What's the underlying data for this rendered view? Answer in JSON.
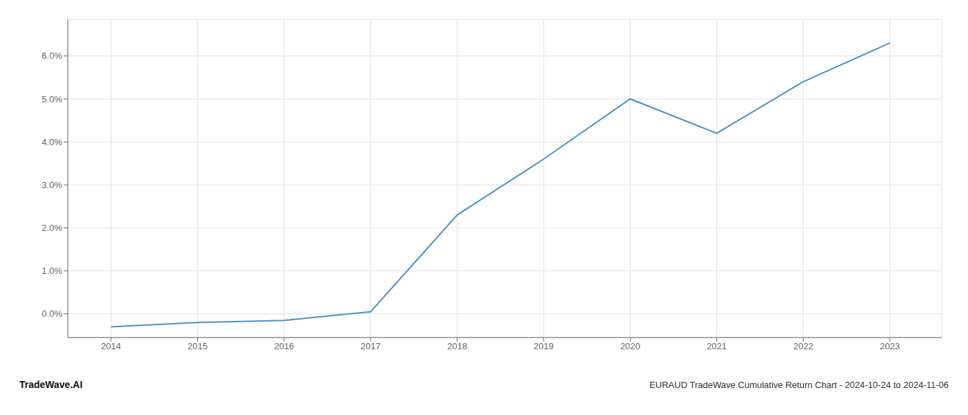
{
  "chart_data": {
    "type": "line",
    "title": "EURAUD TradeWave Cumulative Return Chart - 2024-10-24 to 2024-11-06",
    "annotations": [
      {
        "text": "TradeWave.AI"
      }
    ],
    "x": [
      2014,
      2015,
      2016,
      2017,
      2018,
      2019,
      2020,
      2021,
      2022,
      2023
    ],
    "values": [
      -0.3,
      -0.2,
      -0.15,
      0.05,
      2.3,
      3.6,
      5.0,
      4.2,
      5.4,
      6.3
    ],
    "color": "#4a90c4",
    "xlim": [
      2013.5,
      2023.6
    ],
    "xticks": [
      2014,
      2015,
      2016,
      2017,
      2018,
      2019,
      2020,
      2021,
      2022,
      2023
    ],
    "ylim": [
      -0.55,
      6.85
    ],
    "yticks": [
      {
        "value": 0.0,
        "label": "0.0%"
      },
      {
        "value": 1.0,
        "label": "1.0%"
      },
      {
        "value": 2.0,
        "label": "2.0%"
      },
      {
        "value": 3.0,
        "label": "3.0%"
      },
      {
        "value": 4.0,
        "label": "4.0%"
      },
      {
        "value": 5.0,
        "label": "5.0%"
      },
      {
        "value": 6.0,
        "label": "6.0%"
      }
    ],
    "grid": true
  }
}
